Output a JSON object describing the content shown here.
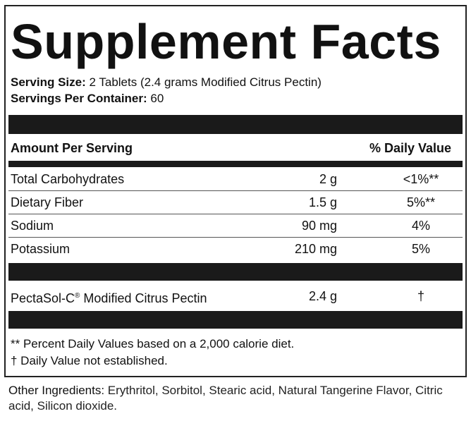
{
  "title": "Supplement Facts",
  "serving_size": {
    "label": "Serving Size:",
    "value": "2 Tablets (2.4 grams Modified Citrus Pectin)"
  },
  "servings_per_container": {
    "label": "Servings Per Container:",
    "value": "60"
  },
  "header": {
    "amount": "Amount Per Serving",
    "daily_value": "% Daily Value"
  },
  "rows": [
    {
      "name": "Total Carbohydrates",
      "amount": "2 g",
      "dv": "<1%**"
    },
    {
      "name": "Dietary Fiber",
      "amount": "1.5 g",
      "dv": "5%**"
    },
    {
      "name": "Sodium",
      "amount": "90 mg",
      "dv": "4%"
    },
    {
      "name": "Potassium",
      "amount": "210 mg",
      "dv": "5%"
    }
  ],
  "blend": {
    "name": "PectaSol-C",
    "reg": "®",
    "name_rest": " Modified Citrus Pectin",
    "amount": "2.4 g",
    "dv": "†"
  },
  "footnotes": [
    "** Percent Daily Values based on a 2,000 calorie diet.",
    "† Daily Value not established."
  ],
  "other_ingredients": {
    "label": "Other Ingredients:",
    "value": " Erythritol, Sorbitol, Stearic acid, Natural Tangerine Flavor, Citric acid, Silicon dioxide."
  }
}
